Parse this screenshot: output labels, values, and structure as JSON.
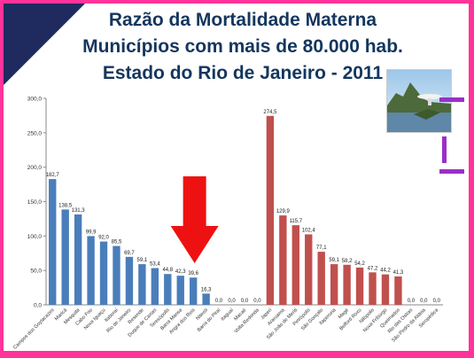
{
  "title": {
    "line1": "Razão da Mortalidade Materna",
    "line2": "Municípios com mais de 80.000 hab.",
    "line3": "Estado do Rio de Janeiro  - 2011"
  },
  "colors": {
    "series1": "#4a7ebb",
    "series2": "#c0504d",
    "arrow": "#ee1111",
    "title": "#14365e"
  },
  "chart_data": {
    "type": "bar",
    "title": "Razão da Mortalidade Materna",
    "ylim": [
      0,
      300
    ],
    "yticks": [
      "0,0",
      "50,0",
      "100,0",
      "150,0",
      "200,0",
      "250,0",
      "300,0"
    ],
    "grid": false,
    "categories": [
      "Campos dos Goytacazes",
      "Maricá",
      "Mesquita",
      "Cabo Frio",
      "Nova Iguaçu",
      "Itaboraí",
      "Rio de Janeiro",
      "Resende",
      "Duque de Caxias",
      "Teresópolis",
      "Barra Mansa",
      "Angra dos Reis",
      "Niterói",
      "Barra do Piraí",
      "Itaguaí",
      "Macaé",
      "Volta Redonda",
      "Japeri",
      "Araruama",
      "São João de Meriti",
      "Petrópolis",
      "São Gonçalo",
      "Itaperuna",
      "Magé",
      "Belford Roxo",
      "Nilópolis",
      "Nova Friburgo",
      "Queimados",
      "Rio das Ostras",
      "São Pedro da Aldeia",
      "Seropédica"
    ],
    "values": [
      182.7,
      138.5,
      131.3,
      99.9,
      92.0,
      85.5,
      69.7,
      59.1,
      53.4,
      44.8,
      42.3,
      39.6,
      16.3,
      0.0,
      0.0,
      0.0,
      0.0,
      274.5,
      129.9,
      115.7,
      102.4,
      77.1,
      59.1,
      58.2,
      54.2,
      47.2,
      44.2,
      41.3,
      0.0,
      0.0,
      0.0
    ],
    "labels": [
      "182,7",
      "138,5",
      "131,3",
      "99,9",
      "92,0",
      "85,5",
      "69,7",
      "59,1",
      "53,4",
      "44,8",
      "42,3",
      "39,6",
      "16,3",
      "0,0",
      "0,0",
      "0,0",
      "0,0",
      "274,5",
      "129,9",
      "115,7",
      "102,4",
      "77,1",
      "59,1",
      "58,2",
      "54,2",
      "47,2",
      "44,2",
      "41,3",
      "0,0",
      "0,0",
      "0,0"
    ],
    "group_split": 17
  }
}
